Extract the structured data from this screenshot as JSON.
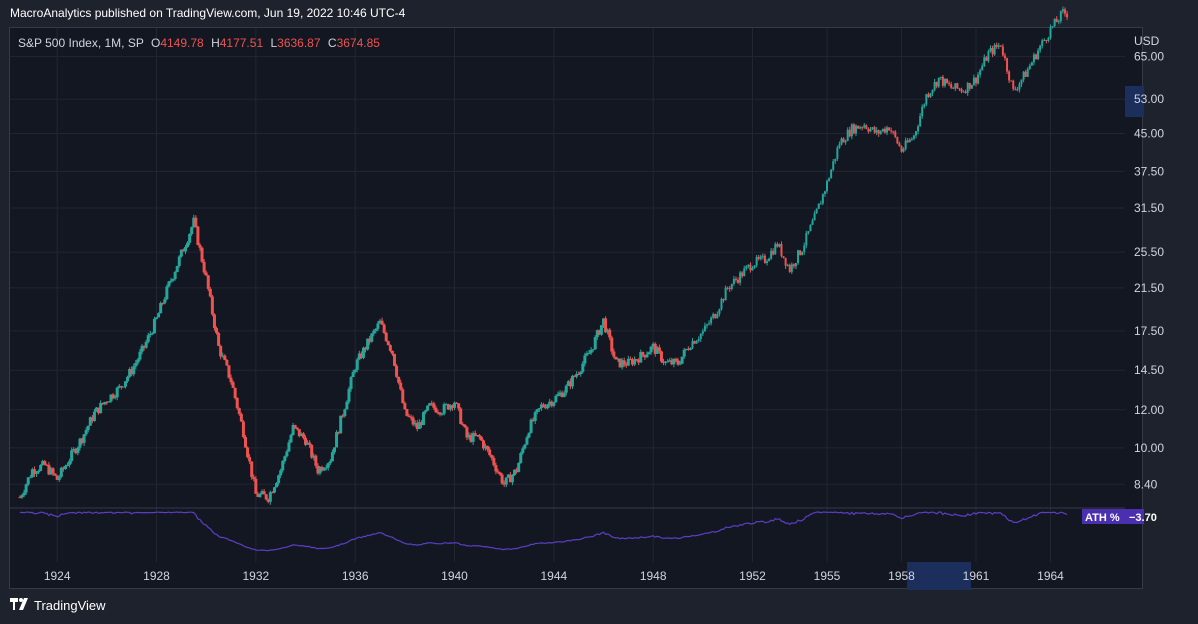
{
  "header": {
    "published_text": "MacroAnalytics published on TradingView.com, Jun 19, 2022 10:46 UTC-4"
  },
  "legend": {
    "symbol": "S&P 500 Index, 1M, SP",
    "open_label": "O",
    "open": "4149.78",
    "high_label": "H",
    "high": "4177.51",
    "low_label": "L",
    "low": "3636.87",
    "close_label": "C",
    "close": "3674.85"
  },
  "price_axis": {
    "currency": "USD",
    "ticks": [
      "65.00",
      "53.00",
      "45.00",
      "37.50",
      "31.50",
      "25.50",
      "21.50",
      "17.50",
      "14.50",
      "12.00",
      "10.00",
      "8.40"
    ]
  },
  "time_axis": {
    "ticks": [
      "1924",
      "1928",
      "1932",
      "1936",
      "1940",
      "1944",
      "1948",
      "1952",
      "1955",
      "1958",
      "1961",
      "1964"
    ]
  },
  "indicator": {
    "name": "ATH %",
    "value": "−3.70"
  },
  "footer": {
    "brand": "TradingView"
  },
  "colors": {
    "background": "#131722",
    "up": "#26a69a",
    "down": "#ef5350",
    "indicator_line": "#5b3fc4",
    "indicator_badge": "#4a2fb0",
    "axis_highlight": "#1c2e5c"
  },
  "chart_data": {
    "type": "candlestick",
    "interval": "1M",
    "yscale": "log",
    "ylim": [
      7.5,
      72
    ],
    "xlim": [
      1922.1,
      1967.0
    ],
    "series": [
      {
        "name": "S&P 500 Index, 1M, SP",
        "points": [
          [
            1922.5,
            7.9
          ],
          [
            1923.0,
            9.0
          ],
          [
            1923.5,
            9.2
          ],
          [
            1924.0,
            8.6
          ],
          [
            1924.5,
            9.5
          ],
          [
            1925.0,
            10.5
          ],
          [
            1925.5,
            11.8
          ],
          [
            1926.0,
            12.6
          ],
          [
            1926.5,
            13.3
          ],
          [
            1927.0,
            14.5
          ],
          [
            1927.5,
            16.2
          ],
          [
            1928.0,
            18.5
          ],
          [
            1928.5,
            21.8
          ],
          [
            1929.0,
            25.3
          ],
          [
            1929.5,
            29.5
          ],
          [
            1930.0,
            22.5
          ],
          [
            1930.5,
            16.2
          ],
          [
            1931.0,
            13.8
          ],
          [
            1931.5,
            10.8
          ],
          [
            1932.0,
            8.0
          ],
          [
            1932.5,
            7.9
          ],
          [
            1933.0,
            9.0
          ],
          [
            1933.5,
            11.0
          ],
          [
            1934.0,
            10.4
          ],
          [
            1934.5,
            9.0
          ],
          [
            1935.0,
            9.5
          ],
          [
            1935.5,
            11.8
          ],
          [
            1936.0,
            14.8
          ],
          [
            1936.5,
            16.5
          ],
          [
            1937.0,
            18.2
          ],
          [
            1937.5,
            15.8
          ],
          [
            1938.0,
            11.8
          ],
          [
            1938.5,
            11.0
          ],
          [
            1939.0,
            12.2
          ],
          [
            1939.5,
            12.0
          ],
          [
            1940.0,
            12.5
          ],
          [
            1940.5,
            10.5
          ],
          [
            1941.0,
            10.5
          ],
          [
            1941.5,
            9.5
          ],
          [
            1942.0,
            8.4
          ],
          [
            1942.5,
            9.0
          ],
          [
            1943.0,
            11.0
          ],
          [
            1943.5,
            12.2
          ],
          [
            1944.0,
            12.6
          ],
          [
            1944.5,
            13.3
          ],
          [
            1945.0,
            14.5
          ],
          [
            1945.5,
            16.0
          ],
          [
            1946.0,
            18.4
          ],
          [
            1946.5,
            15.0
          ],
          [
            1947.0,
            15.0
          ],
          [
            1947.5,
            15.5
          ],
          [
            1948.0,
            16.2
          ],
          [
            1948.5,
            15.0
          ],
          [
            1949.0,
            15.0
          ],
          [
            1949.5,
            16.5
          ],
          [
            1950.0,
            17.4
          ],
          [
            1950.5,
            19.0
          ],
          [
            1951.0,
            21.5
          ],
          [
            1951.5,
            22.8
          ],
          [
            1952.0,
            24.2
          ],
          [
            1952.5,
            24.6
          ],
          [
            1953.0,
            26.5
          ],
          [
            1953.5,
            23.5
          ],
          [
            1954.0,
            26.0
          ],
          [
            1954.5,
            30.0
          ],
          [
            1955.0,
            35.5
          ],
          [
            1955.5,
            43.0
          ],
          [
            1956.0,
            46.0
          ],
          [
            1956.5,
            47.0
          ],
          [
            1957.0,
            45.0
          ],
          [
            1957.5,
            46.5
          ],
          [
            1958.0,
            41.5
          ],
          [
            1958.5,
            44.5
          ],
          [
            1959.0,
            54.0
          ],
          [
            1959.5,
            58.5
          ],
          [
            1960.0,
            56.0
          ],
          [
            1960.5,
            55.5
          ],
          [
            1961.0,
            58.5
          ],
          [
            1961.5,
            66.0
          ],
          [
            1962.0,
            69.0
          ],
          [
            1962.5,
            55.0
          ],
          [
            1963.0,
            60.0
          ],
          [
            1963.5,
            67.0
          ],
          [
            1964.0,
            74.0
          ],
          [
            1964.5,
            80.0
          ]
        ]
      }
    ],
    "indicator_series": {
      "name": "ATH %",
      "last_value": -3.7
    },
    "grid": true,
    "legend_position": "top-left"
  }
}
